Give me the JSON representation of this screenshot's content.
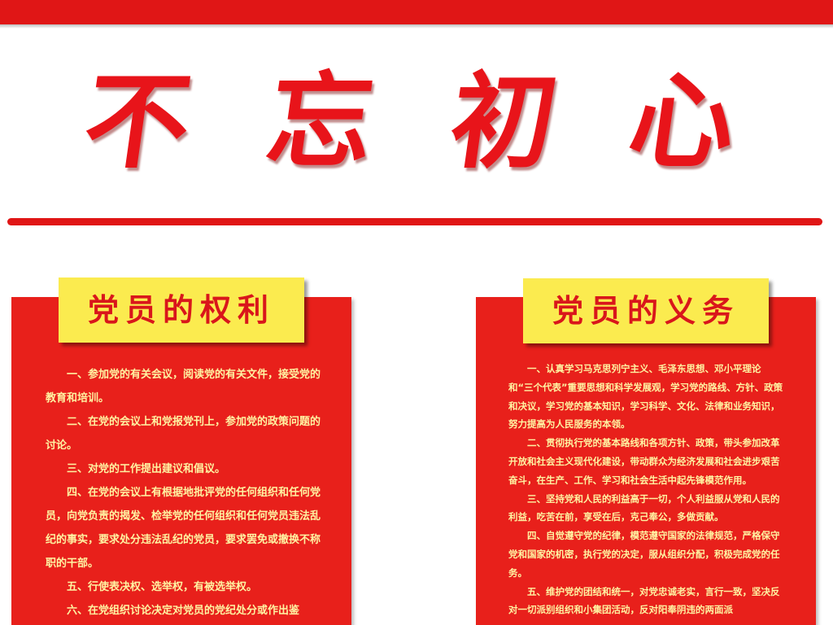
{
  "header": {
    "main_title_chars": [
      "不",
      "忘",
      "初",
      "心"
    ]
  },
  "left_panel": {
    "title": "党员的权利",
    "paragraphs": [
      "一、参加党的有关会议，阅读党的有关文件，接受党的教育和培训。",
      "二、在党的会议上和党报党刊上，参加党的政策问题的讨论。",
      "三、对党的工作提出建议和倡议。",
      "四、在党的会议上有根据地批评党的任何组织和任何党员，向党负责的揭发、检举党的任何组织和任何党员违法乱纪的事实，要求处分违法乱纪的党员，要求罢免或撤换不称职的干部。",
      "五、行使表决权、选举权，有被选举权。",
      "六、在党组织讨论决定对党员的党纪处分或作出鉴"
    ]
  },
  "right_panel": {
    "title": "党员的义务",
    "paragraphs": [
      "一、认真学习马克思列宁主义、毛泽东思想、邓小平理论和“三个代表”重要思想和科学发展观，学习党的路线、方针、政策和决议，学习党的基本知识，学习科学、文化、法律和业务知识，努力提高为人民服务的本领。",
      "二、贯彻执行党的基本路线和各项方针、政策，带头参加改革开放和社会主义现代化建设，带动群众为经济发展和社会进步艰苦奋斗，在生产、工作、学习和社会生活中起先锋模范作用。",
      "三、坚持党和人民的利益高于一切，个人利益服从党和人民的利益，吃苦在前，享受在后，克己奉公，多做贡献。",
      "四、自觉遵守党的纪律，模范遵守国家的法律规范，严格保守党和国家的机密，执行党的决定，服从组织分配，积极完成党的任务。",
      "五、维护党的团结和统一，对党忠诚老实，言行一致，坚决反对一切派别组织和小集团活动，反对阳奉阴违的两面派"
    ]
  },
  "colors": {
    "primary_red": "#e8201b",
    "tab_yellow": "#fbeb4f",
    "body_text": "#fff3a2"
  }
}
